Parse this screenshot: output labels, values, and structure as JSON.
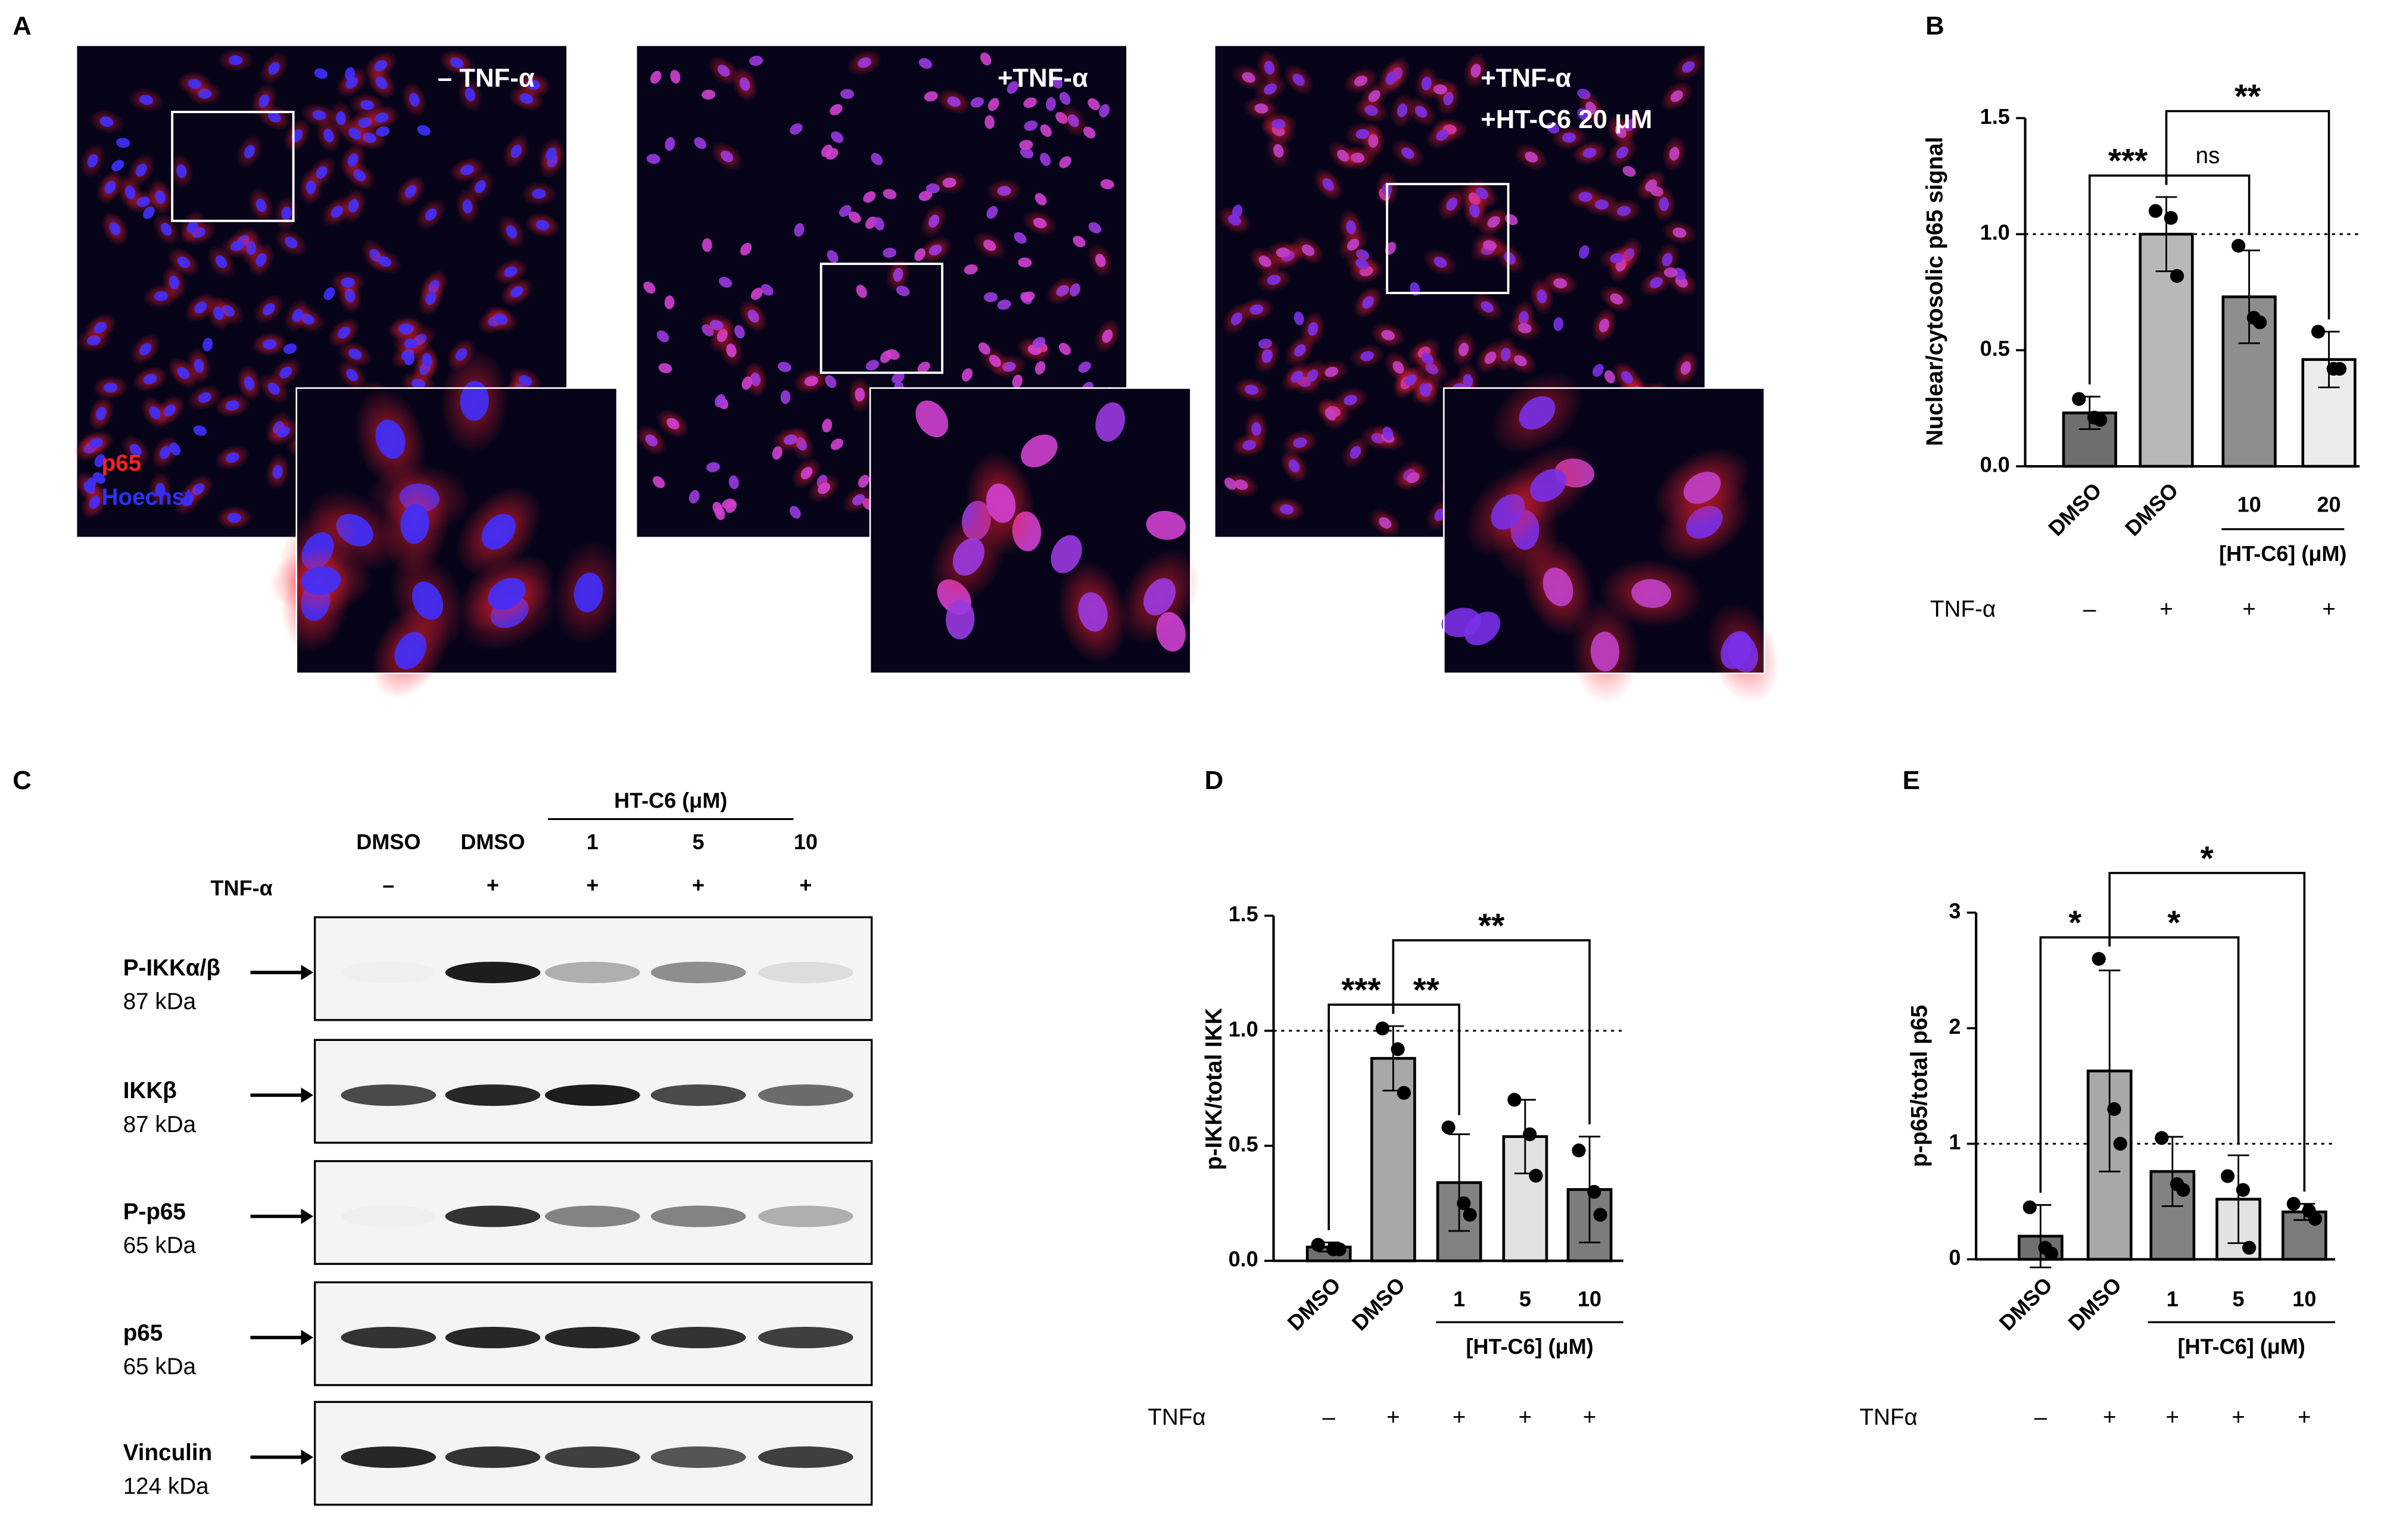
{
  "panel_labels": [
    "A",
    "B",
    "C",
    "D",
    "E"
  ],
  "panel_a": {
    "images": [
      {
        "labels": [
          "– TNF-α"
        ]
      },
      {
        "labels": [
          "+TNF-α"
        ]
      },
      {
        "labels": [
          "+TNF-α",
          "+HT-C6 20 μM"
        ]
      }
    ],
    "stain_labels": [
      "p65",
      "Hoechst"
    ]
  },
  "panel_c": {
    "group_label": "HT-C6 (μM)",
    "lanes": [
      "DMSO",
      "DMSO",
      "1",
      "5",
      "10"
    ],
    "row_label": "TNF-α",
    "row_values": [
      "–",
      "+",
      "+",
      "+",
      "+"
    ],
    "proteins": [
      {
        "name": "P-IKKα/β",
        "size": "87 kDa"
      },
      {
        "name": "IKKβ",
        "size": "87 kDa"
      },
      {
        "name": "P-p65",
        "size": "65 kDa"
      },
      {
        "name": "p65",
        "size": "65 kDa"
      },
      {
        "name": "Vinculin",
        "size": "124 kDa"
      }
    ]
  },
  "chart_data": [
    {
      "type": "bar",
      "ylabel": "Nuclear/cytosolic p65 signal",
      "categories": [
        "DMSO",
        "DMSO",
        "10",
        "20"
      ],
      "group_label": "[HT-C6] (μM)",
      "row_label": "TNF-α",
      "row_values": [
        "–",
        "+",
        "+",
        "+"
      ],
      "values": [
        0.23,
        1.0,
        0.73,
        0.46
      ],
      "errors": [
        0.07,
        0.16,
        0.2,
        0.12
      ],
      "points": [
        [
          0.29,
          0.21,
          0.2
        ],
        [
          1.1,
          1.07,
          0.82
        ],
        [
          0.95,
          0.64,
          0.62
        ],
        [
          0.58,
          0.42,
          0.42
        ]
      ],
      "colors": [
        "#6e6e6e",
        "#b8b8b8",
        "#8e8e8e",
        "#ececec"
      ],
      "ylim": [
        0,
        1.5
      ],
      "yticks": [
        {
          "value": 0,
          "label": "0.0"
        },
        0.5,
        {
          "value": 1,
          "label": "1.0"
        },
        1.5
      ],
      "reference_line": 1,
      "annotations": [
        "***",
        "ns",
        "**"
      ]
    },
    {
      "type": "bar",
      "ylabel": "p-IKK/total IKK",
      "categories": [
        "DMSO",
        "DMSO",
        "1",
        "5",
        "10"
      ],
      "group_label": "[HT-C6] (μM)",
      "row_label": "TNFα",
      "row_values": [
        "–",
        "+",
        "+",
        "+",
        "+"
      ],
      "values": [
        0.06,
        0.88,
        0.34,
        0.54,
        0.31
      ],
      "errors": [
        0.02,
        0.14,
        0.21,
        0.16,
        0.23
      ],
      "points": [
        [
          0.07,
          0.05,
          0.05
        ],
        [
          1.01,
          0.92,
          0.73
        ],
        [
          0.58,
          0.25,
          0.2
        ],
        [
          0.7,
          0.55,
          0.37
        ],
        [
          0.48,
          0.3,
          0.2
        ]
      ],
      "colors": [
        "#707070",
        "#a8a8a8",
        "#828282",
        "#e2e2e2",
        "#7c7c7c"
      ],
      "ylim": [
        0,
        1.5
      ],
      "yticks": [
        {
          "value": 0,
          "label": "0.0"
        },
        0.5,
        {
          "value": 1,
          "label": "1.0"
        },
        1.5
      ],
      "reference_line": 1,
      "annotations": [
        "***",
        "**",
        "**"
      ]
    },
    {
      "type": "bar",
      "ylabel": "p-p65/total p65",
      "categories": [
        "DMSO",
        "DMSO",
        "1",
        "5",
        "10"
      ],
      "group_label": "[HT-C6] (μM)",
      "row_label": "TNFα",
      "row_values": [
        "–",
        "+",
        "+",
        "+",
        "+"
      ],
      "values": [
        0.2,
        1.63,
        0.76,
        0.52,
        0.41
      ],
      "errors": [
        0.27,
        0.87,
        0.3,
        0.38,
        0.07
      ],
      "points": [
        [
          0.45,
          0.1,
          0.05
        ],
        [
          2.6,
          1.3,
          1.0
        ],
        [
          1.05,
          0.65,
          0.6
        ],
        [
          0.72,
          0.6,
          0.1
        ],
        [
          0.48,
          0.42,
          0.35
        ]
      ],
      "colors": [
        "#707070",
        "#a8a8a8",
        "#828282",
        "#e2e2e2",
        "#7c7c7c"
      ],
      "ylim": [
        0,
        3
      ],
      "yticks": [
        0,
        1,
        2,
        3
      ],
      "reference_line": 1,
      "annotations": [
        "*",
        "*",
        "*"
      ]
    }
  ]
}
